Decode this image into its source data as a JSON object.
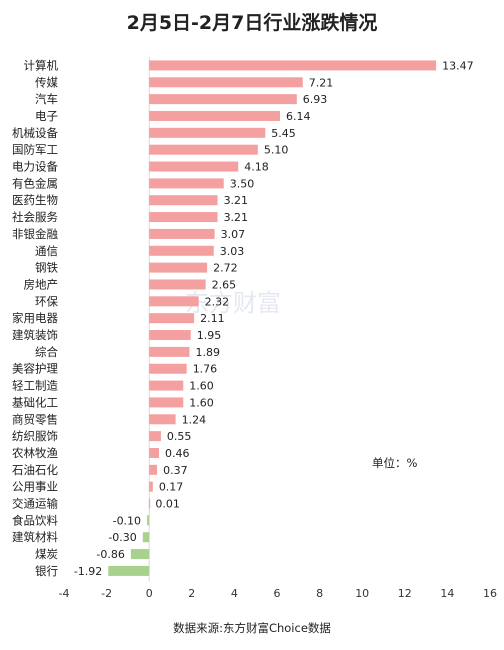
{
  "chart_data": {
    "type": "bar",
    "orientation": "horizontal",
    "title": "2月5日-2月7日行业涨跌情况",
    "unit": "单位：%",
    "source": "数据来源:东方财富Choice数据",
    "watermark": "东方财富",
    "categories": [
      "计算机",
      "传媒",
      "汽车",
      "电子",
      "机械设备",
      "国防军工",
      "电力设备",
      "有色金属",
      "医药生物",
      "社会服务",
      "非银金融",
      "通信",
      "钢铁",
      "房地产",
      "环保",
      "家用电器",
      "建筑装饰",
      "综合",
      "美容护理",
      "轻工制造",
      "基础化工",
      "商贸零售",
      "纺织服饰",
      "农林牧渔",
      "石油石化",
      "公用事业",
      "交通运输",
      "食品饮料",
      "建筑材料",
      "煤炭",
      "银行"
    ],
    "values": [
      13.47,
      7.21,
      6.93,
      6.14,
      5.45,
      5.1,
      4.18,
      3.5,
      3.21,
      3.21,
      3.07,
      3.03,
      2.72,
      2.65,
      2.32,
      2.11,
      1.95,
      1.89,
      1.76,
      1.6,
      1.6,
      1.24,
      0.55,
      0.46,
      0.37,
      0.17,
      0.01,
      -0.1,
      -0.3,
      -0.86,
      -1.92
    ],
    "value_labels": [
      "13.47",
      "7.21",
      "6.93",
      "6.14",
      "5.45",
      "5.10",
      "4.18",
      "3.50",
      "3.21",
      "3.21",
      "3.07",
      "3.03",
      "2.72",
      "2.65",
      "2.32",
      "2.11",
      "1.95",
      "1.89",
      "1.76",
      "1.60",
      "1.60",
      "1.24",
      "0.55",
      "0.46",
      "0.37",
      "0.17",
      "0.01",
      "-0.10",
      "-0.30",
      "-0.86",
      "-1.92"
    ],
    "xlim": [
      -4,
      16
    ],
    "xticks": [
      -4,
      -2,
      0,
      2,
      4,
      6,
      8,
      10,
      12,
      14,
      16
    ],
    "grid": false,
    "colors": {
      "positive": "#f4a0a0",
      "negative": "#a9d18e",
      "axis": "#d9d9d9"
    }
  }
}
